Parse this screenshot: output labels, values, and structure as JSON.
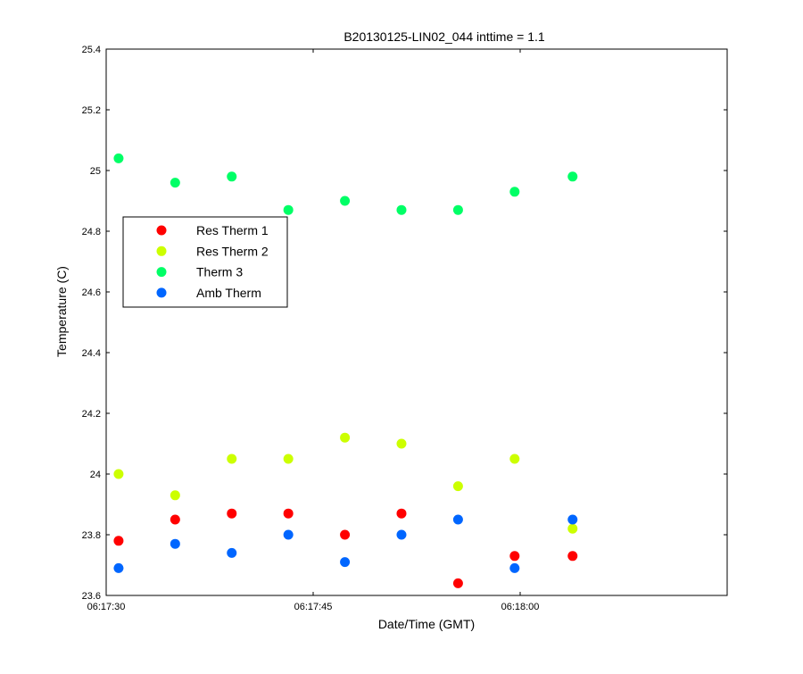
{
  "chart_data": {
    "type": "scatter",
    "title": "B20130125-LIN02_044 inttime = 1.1",
    "xlabel": "Date/Time (GMT)",
    "ylabel": "Temperature (C)",
    "x_unit": "time (GMT)",
    "xlim": [
      "06:17:30",
      "06:18:15"
    ],
    "ylim": [
      23.6,
      25.4
    ],
    "xticks": [
      "06:17:30",
      "06:17:45",
      "06:18:00"
    ],
    "yticks": [
      "23.6",
      "23.8",
      "24",
      "24.2",
      "24.4",
      "24.6",
      "24.8",
      "25",
      "25.2",
      "25.4"
    ],
    "grid": false,
    "legend_position": "left",
    "x": [
      "06:17:30.9",
      "06:17:35.0",
      "06:17:39.1",
      "06:17:43.2",
      "06:17:47.3",
      "06:17:51.4",
      "06:17:55.5",
      "06:17:59.6",
      "06:18:03.8"
    ],
    "series": [
      {
        "name": "Res Therm 1",
        "color": "#ff0000",
        "values": [
          23.78,
          23.85,
          23.87,
          23.87,
          23.8,
          23.87,
          23.64,
          23.73,
          23.73
        ]
      },
      {
        "name": "Res Therm 2",
        "color": "#ccff00",
        "values": [
          24.0,
          23.93,
          24.05,
          24.05,
          24.12,
          24.1,
          23.96,
          24.05,
          23.82
        ]
      },
      {
        "name": "Therm 3",
        "color": "#00ff66",
        "values": [
          25.04,
          24.96,
          24.98,
          24.87,
          24.9,
          24.87,
          24.87,
          24.93,
          24.98
        ]
      },
      {
        "name": "Amb Therm",
        "color": "#0066ff",
        "values": [
          23.69,
          23.77,
          23.74,
          23.8,
          23.71,
          23.8,
          23.85,
          23.69,
          23.85
        ]
      }
    ]
  }
}
